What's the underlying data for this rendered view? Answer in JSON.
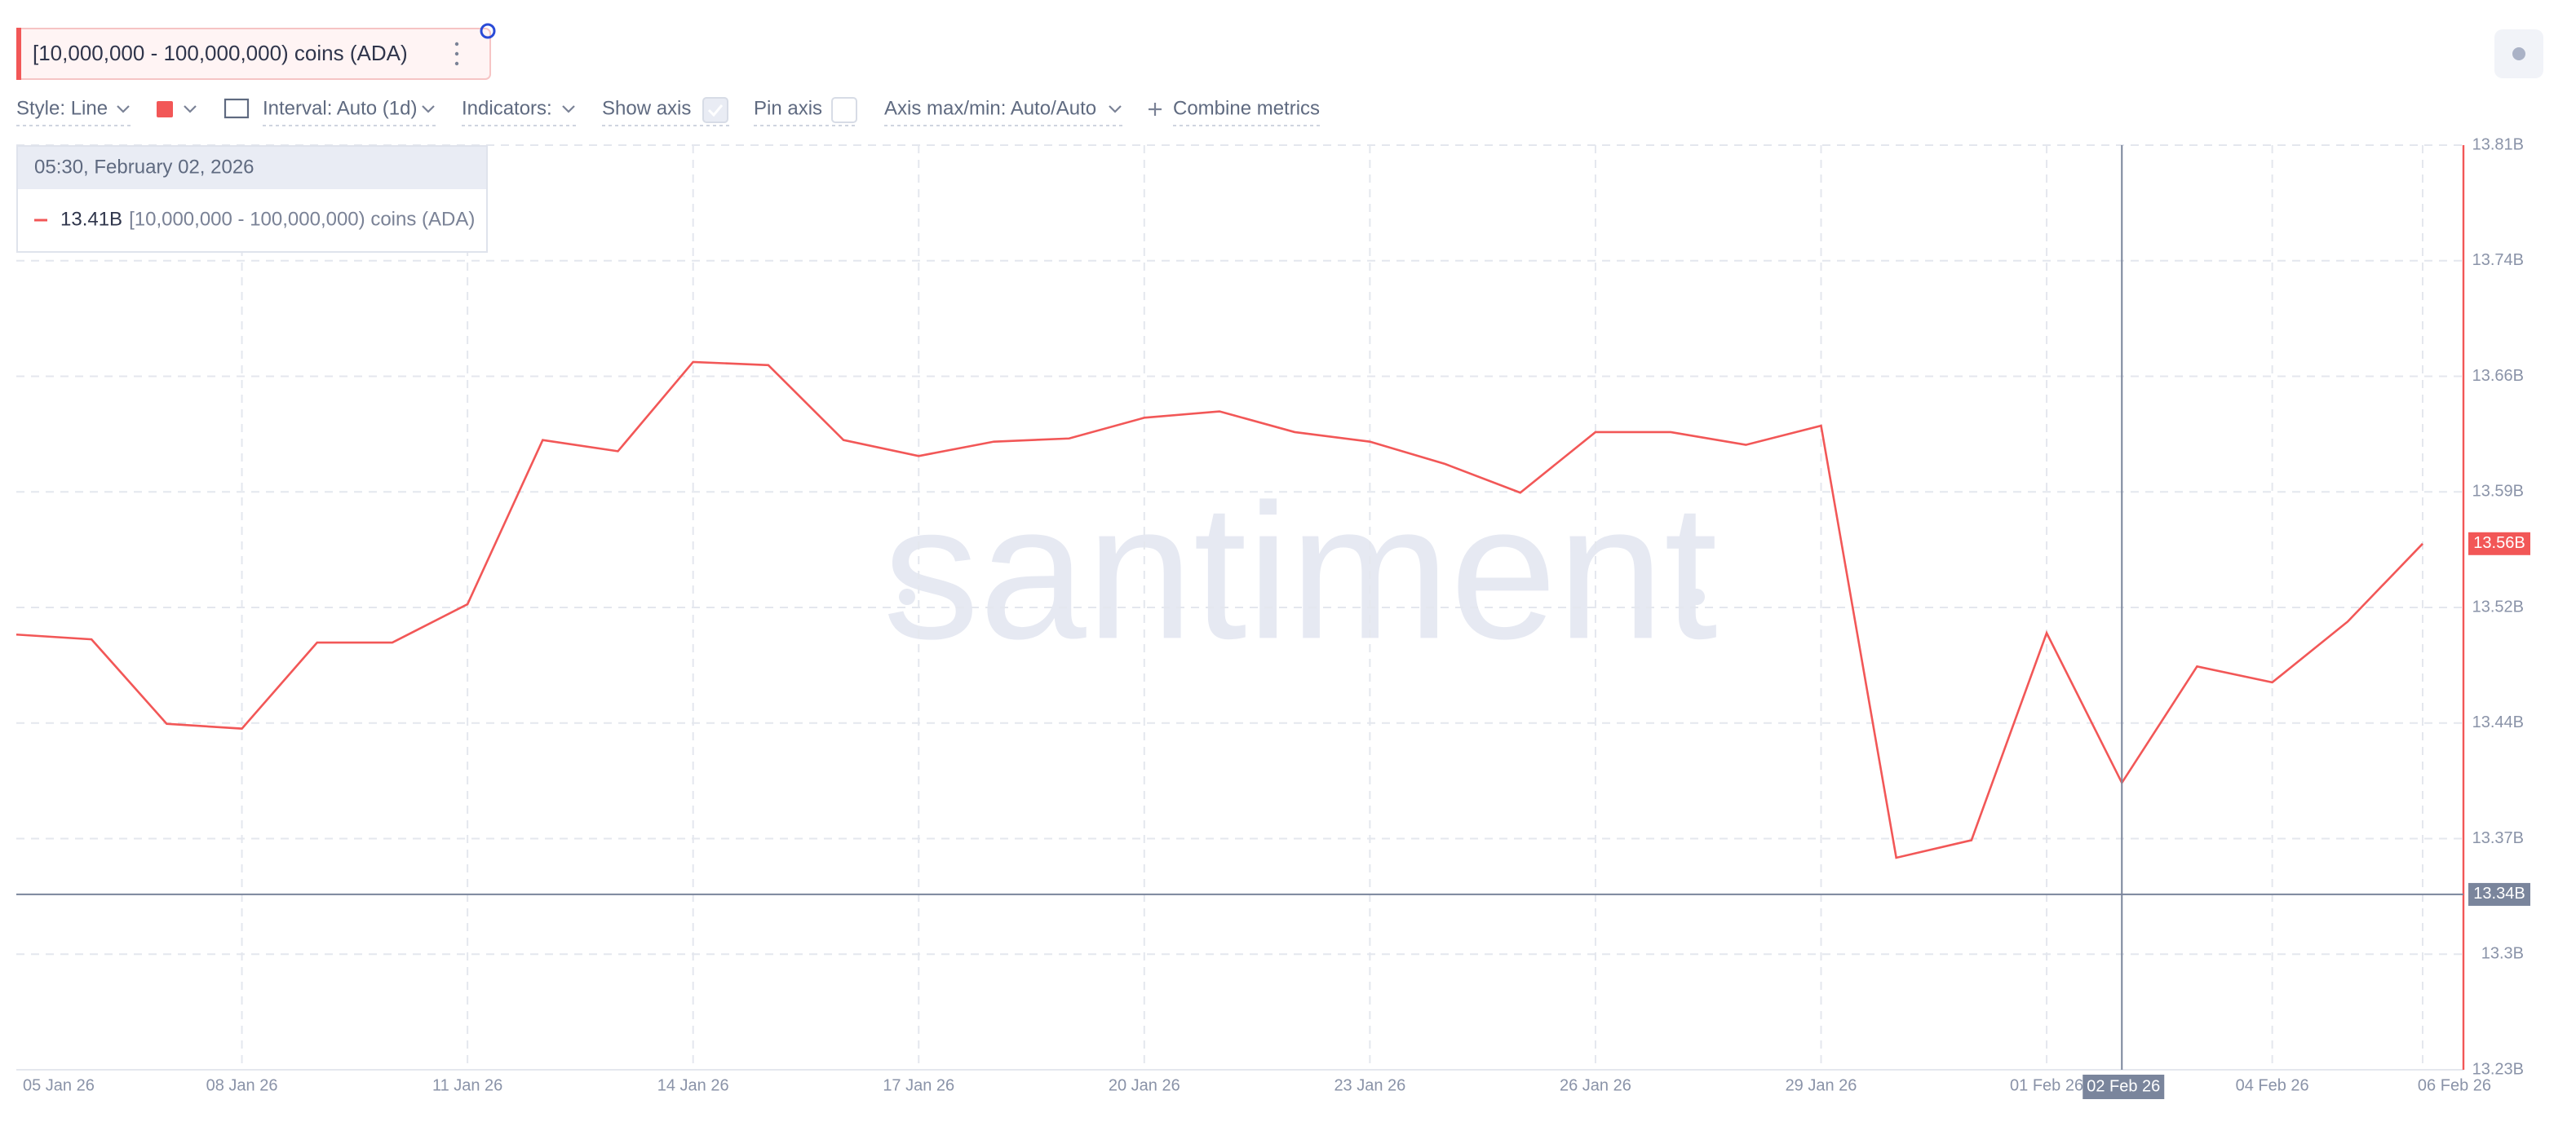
{
  "chart_data": {
    "type": "line",
    "watermark": "santiment",
    "toolbar": {
      "style": "Style: Line",
      "interval": "Interval: Auto (1d)",
      "indicators": "Indicators:",
      "show_axis": "Show axis",
      "pin_axis": "Pin axis",
      "axis_range": "Axis max/min: Auto/Auto",
      "combine": "Combine metrics"
    },
    "tooltip": {
      "title": "05:30, February 02, 2026"
    },
    "categories": [
      "05 Jan 26",
      null,
      null,
      "08 Jan 26",
      null,
      null,
      "11 Jan 26",
      null,
      null,
      "14 Jan 26",
      null,
      null,
      "17 Jan 26",
      null,
      null,
      "20 Jan 26",
      null,
      null,
      "23 Jan 26",
      null,
      null,
      "26 Jan 26",
      null,
      null,
      "29 Jan 26",
      null,
      null,
      "01 Feb 26",
      "02 Feb 26",
      null,
      "04 Feb 26",
      null,
      "06 Feb 26"
    ],
    "series": [
      {
        "name": "[10,000,000 - 100,000,000) coins (ADA)",
        "color": "#f25757",
        "values": [
          13.503,
          13.5,
          13.447,
          13.444,
          13.498,
          13.498,
          13.522,
          13.625,
          13.618,
          13.674,
          13.672,
          13.625,
          13.615,
          13.624,
          13.626,
          13.639,
          13.643,
          13.63,
          13.624,
          13.61,
          13.592,
          13.63,
          13.63,
          13.622,
          13.634,
          13.363,
          13.374,
          13.504,
          13.41,
          13.483,
          13.473,
          13.511,
          13.56
        ],
        "value_labels": [
          null,
          null,
          null,
          null,
          null,
          null,
          null,
          null,
          null,
          null,
          null,
          null,
          null,
          null,
          null,
          null,
          null,
          null,
          null,
          null,
          null,
          null,
          null,
          null,
          null,
          null,
          null,
          null,
          "13.41B",
          null,
          null,
          null,
          "13.56B"
        ]
      }
    ],
    "ylim": [
      13.23,
      13.81
    ],
    "yticks": [
      {
        "value": 13.23,
        "label": "13.23B"
      },
      {
        "value": 13.3025,
        "label": "13.3B"
      },
      {
        "value": 13.375,
        "label": "13.37B"
      },
      {
        "value": 13.4475,
        "label": "13.44B"
      },
      {
        "value": 13.52,
        "label": "13.52B"
      },
      {
        "value": 13.5925,
        "label": "13.59B"
      },
      {
        "value": 13.665,
        "label": "13.66B"
      },
      {
        "value": 13.7375,
        "label": "13.74B"
      },
      {
        "value": 13.81,
        "label": "13.81B"
      }
    ],
    "crosshair_y": {
      "value": 13.34,
      "label": "13.34B"
    },
    "grid": true
  }
}
